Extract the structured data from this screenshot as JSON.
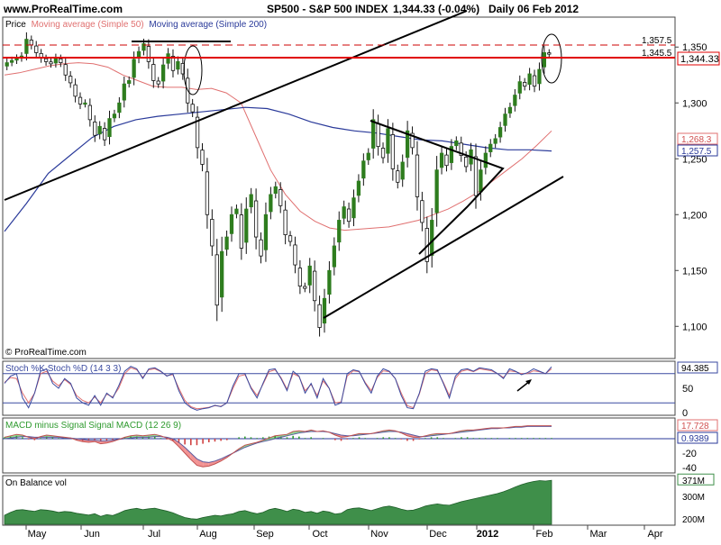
{
  "header": {
    "site": "www.ProRealTime.com",
    "instrument": "SP500 - S&P 500 INDEX",
    "quote": "1,344.33 (-0.04%)",
    "period": "Daily  06 Feb 2012"
  },
  "legend": {
    "price": "Price",
    "ma50": "Moving average (Simple 50)",
    "ma200": "Moving average (Simple 200)",
    "copyright": "© ProRealTime.com"
  },
  "colors": {
    "up": "#2e7d1e",
    "down": "#111111",
    "ma50": "#e07070",
    "ma200": "#2a3a9a",
    "resistance": "#e00000",
    "stochK": "#3a4aa0",
    "stochD": "#e07070",
    "obv": "#3f8f4a"
  },
  "x_axis": {
    "months": [
      {
        "label": "May",
        "bold": false
      },
      {
        "label": "Jun",
        "bold": false
      },
      {
        "label": "Jul",
        "bold": false
      },
      {
        "label": "Aug",
        "bold": false
      },
      {
        "label": "Sep",
        "bold": false
      },
      {
        "label": "Oct",
        "bold": false
      },
      {
        "label": "Nov",
        "bold": false
      },
      {
        "label": "Dec",
        "bold": false
      },
      {
        "label": "2012",
        "bold": true
      },
      {
        "label": "Feb",
        "bold": false
      },
      {
        "label": "Mar",
        "bold": false
      },
      {
        "label": "Apr",
        "bold": false
      }
    ]
  },
  "chart_data": [
    {
      "type": "candlestick",
      "title": "SP500 - S&P 500 INDEX",
      "ylim": [
        1072,
        1376
      ],
      "yticks": [
        "1,100",
        "1,150",
        "1,200",
        "1,250",
        "1,300",
        "1,350"
      ],
      "series": [
        {
          "name": "Price",
          "y": [
            1336,
            1338,
            1340,
            1342,
            1357,
            1352,
            1345,
            1340,
            1337,
            1335,
            1340,
            1336,
            1325,
            1318,
            1306,
            1299,
            1300,
            1285,
            1271,
            1279,
            1267,
            1286,
            1290,
            1300,
            1317,
            1320,
            1339,
            1346,
            1353,
            1337,
            1320,
            1317,
            1334,
            1344,
            1329,
            1337,
            1326,
            1300,
            1292,
            1260,
            1245,
            1200,
            1172,
            1119,
            1167,
            1180,
            1200,
            1205,
            1170,
            1205,
            1218,
            1180,
            1163,
            1200,
            1218,
            1225,
            1208,
            1182,
            1176,
            1155,
            1136,
            1134,
            1154,
            1123,
            1099,
            1125,
            1150,
            1172,
            1195,
            1207,
            1194,
            1215,
            1230,
            1248,
            1255,
            1285,
            1261,
            1251,
            1277,
            1241,
            1229,
            1247,
            1275,
            1260,
            1216,
            1193,
            1158,
            1195,
            1240,
            1255,
            1244,
            1261,
            1266,
            1253,
            1243,
            1258,
            1217,
            1240,
            1255,
            1263,
            1268,
            1278,
            1290,
            1296,
            1307,
            1319,
            1315,
            1326,
            1315,
            1330,
            1345,
            1344
          ]
        },
        {
          "name": "Moving average (Simple 50)",
          "y": [
            1325,
            1327,
            1330,
            1333,
            1335,
            1336,
            1335,
            1332,
            1325,
            1320,
            1315,
            1314,
            1314,
            1312,
            1313,
            1309,
            1300,
            1270,
            1240,
            1218,
            1203,
            1194,
            1188,
            1186,
            1187,
            1188,
            1189,
            1192,
            1195,
            1200,
            1205,
            1212,
            1220,
            1230,
            1240,
            1250,
            1262,
            1275
          ]
        },
        {
          "name": "Moving average (Simple 200)",
          "y": [
            1185,
            1210,
            1237,
            1253,
            1269,
            1279,
            1285,
            1288,
            1290,
            1292,
            1294,
            1296,
            1295,
            1290,
            1283,
            1278,
            1275,
            1273,
            1270,
            1267,
            1266,
            1263,
            1260,
            1258,
            1258,
            1257
          ]
        }
      ],
      "price_labels": [
        "1,357.5",
        "1,345.5",
        "1,344.33",
        "1,268.3",
        "1,257.5"
      ]
    },
    {
      "type": "line",
      "title": "Stoch %K Stoch %D (14 3 3)",
      "ylim": [
        0,
        100
      ],
      "yticks": [
        "50",
        "0"
      ],
      "value_label": "94.385",
      "series": [
        {
          "name": "Stoch %K",
          "y": [
            60,
            75,
            80,
            30,
            10,
            40,
            85,
            90,
            60,
            50,
            70,
            60,
            30,
            20,
            15,
            35,
            15,
            40,
            30,
            55,
            85,
            95,
            90,
            70,
            90,
            92,
            85,
            75,
            80,
            45,
            20,
            10,
            5,
            8,
            10,
            15,
            12,
            20,
            55,
            80,
            80,
            50,
            30,
            60,
            88,
            90,
            70,
            45,
            85,
            75,
            40,
            60,
            30,
            70,
            50,
            15,
            20,
            80,
            88,
            85,
            60,
            40,
            75,
            90,
            85,
            70,
            35,
            10,
            8,
            40,
            85,
            90,
            88,
            60,
            30,
            75,
            88,
            90,
            85,
            92,
            90,
            88,
            80,
            70,
            90,
            85,
            78,
            82,
            90,
            85,
            80,
            94
          ]
        },
        {
          "name": "Stoch %D",
          "y": [
            62,
            72,
            70,
            40,
            20,
            40,
            80,
            85,
            65,
            55,
            68,
            58,
            35,
            25,
            20,
            32,
            20,
            38,
            32,
            50,
            80,
            92,
            88,
            72,
            88,
            90,
            84,
            76,
            78,
            50,
            25,
            12,
            8,
            9,
            11,
            14,
            13,
            20,
            50,
            75,
            78,
            52,
            35,
            58,
            84,
            88,
            72,
            48,
            80,
            74,
            45,
            58,
            35,
            65,
            50,
            20,
            22,
            75,
            86,
            84,
            62,
            45,
            72,
            86,
            84,
            70,
            40,
            14,
            10,
            38,
            80,
            88,
            86,
            62,
            35,
            70,
            85,
            88,
            84,
            90,
            88,
            86,
            80,
            72,
            86,
            84,
            80,
            80,
            86,
            84,
            80,
            90
          ]
        }
      ]
    },
    {
      "type": "line",
      "title": "MACD minus Signal Signal MACD (12 26 9)",
      "ylim": [
        -45,
        25
      ],
      "yticks": [
        "-20",
        "-40"
      ],
      "value_labels": [
        "17.728",
        "0.9389"
      ],
      "series": [
        {
          "name": "MACD minus Signal",
          "y": [
            2,
            3,
            4,
            2,
            -1,
            -2,
            1,
            3,
            2,
            1,
            1,
            0,
            -2,
            -3,
            -3,
            -2,
            -4,
            -3,
            -2,
            0,
            2,
            3,
            3,
            2,
            3,
            3,
            1,
            -1,
            -3,
            -6,
            -8,
            -9,
            -9,
            -7,
            -5,
            -4,
            -3,
            -2,
            0,
            2,
            3,
            2,
            1,
            2,
            3,
            4,
            3,
            2,
            4,
            3,
            1,
            2,
            0,
            1,
            0,
            -2,
            -3,
            -1,
            1,
            2,
            1,
            0,
            1,
            2,
            2,
            1,
            -1,
            -3,
            -3,
            -1,
            1,
            2,
            2,
            1,
            0,
            1,
            2,
            2,
            1,
            1,
            1,
            1,
            1,
            0,
            1,
            1,
            1,
            1,
            1,
            1,
            1,
            1
          ]
        },
        {
          "name": "Signal",
          "y": [
            0,
            1,
            2,
            3,
            3,
            2,
            2,
            2,
            2,
            2,
            1,
            1,
            0,
            -1,
            -2,
            -2,
            -3,
            -3,
            -2,
            -1,
            0,
            1,
            2,
            2,
            2,
            3,
            3,
            2,
            0,
            -5,
            -12,
            -20,
            -28,
            -32,
            -33,
            -31,
            -28,
            -24,
            -20,
            -16,
            -12,
            -9,
            -6,
            -4,
            -2,
            0,
            2,
            4,
            6,
            8,
            9,
            10,
            10,
            10,
            9,
            7,
            5,
            4,
            4,
            5,
            6,
            7,
            8,
            9,
            10,
            10,
            9,
            7,
            5,
            3,
            3,
            4,
            5,
            6,
            7,
            8,
            9,
            10,
            11,
            12,
            13,
            14,
            14,
            15,
            15,
            16,
            16,
            17,
            17,
            17,
            17,
            17
          ]
        },
        {
          "name": "MACD",
          "y": [
            2,
            4,
            6,
            5,
            2,
            0,
            3,
            5,
            4,
            3,
            2,
            1,
            -2,
            -4,
            -5,
            -4,
            -7,
            -6,
            -4,
            -1,
            2,
            4,
            5,
            4,
            5,
            6,
            4,
            1,
            -3,
            -11,
            -20,
            -29,
            -37,
            -39,
            -38,
            -35,
            -31,
            -26,
            -20,
            -14,
            -9,
            -7,
            -5,
            -2,
            1,
            4,
            5,
            6,
            10,
            11,
            10,
            12,
            10,
            11,
            9,
            5,
            2,
            3,
            5,
            7,
            7,
            7,
            9,
            11,
            12,
            11,
            8,
            4,
            2,
            2,
            4,
            6,
            7,
            7,
            7,
            9,
            11,
            12,
            12,
            13,
            14,
            15,
            15,
            15,
            16,
            17,
            17,
            18,
            18,
            18,
            18,
            18
          ]
        }
      ]
    },
    {
      "type": "area",
      "title": "On Balance vol",
      "ylim": [
        175,
        380
      ],
      "yticks": [
        "371M",
        "300M",
        "200M"
      ],
      "series": [
        {
          "name": "On Balance vol",
          "y": [
            215,
            228,
            238,
            240,
            236,
            233,
            240,
            238,
            234,
            228,
            232,
            230,
            224,
            220,
            216,
            222,
            210,
            218,
            214,
            224,
            236,
            242,
            246,
            240,
            244,
            247,
            240,
            234,
            226,
            215,
            205,
            200,
            198,
            205,
            210,
            215,
            212,
            218,
            222,
            232,
            236,
            228,
            222,
            228,
            240,
            246,
            240,
            232,
            242,
            238,
            228,
            232,
            224,
            234,
            230,
            221,
            224,
            240,
            246,
            248,
            242,
            236,
            244,
            252,
            256,
            250,
            242,
            236,
            238,
            246,
            256,
            262,
            266,
            262,
            260,
            268,
            276,
            282,
            288,
            294,
            300,
            306,
            312,
            320,
            330,
            342,
            352,
            360,
            366,
            370,
            368,
            371
          ]
        }
      ]
    }
  ]
}
